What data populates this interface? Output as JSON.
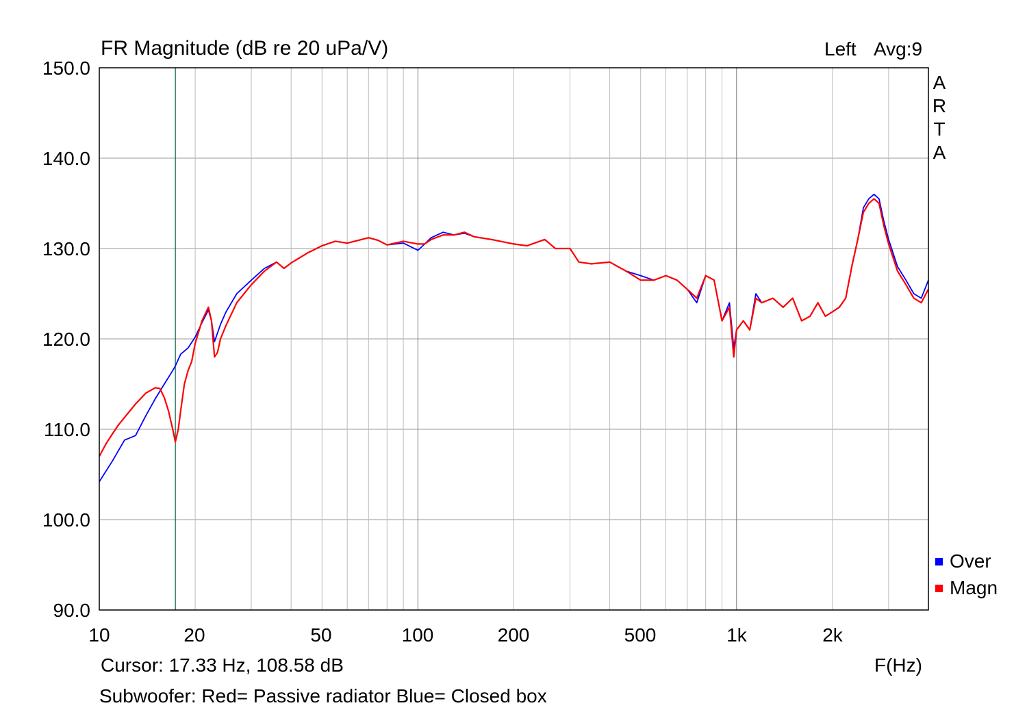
{
  "header": {
    "title": "FR Magnitude (dB re 20 uPa/V)",
    "channel": "Left",
    "avg": "Avg:9",
    "brand_letters": [
      "A",
      "R",
      "T",
      "A"
    ]
  },
  "footer": {
    "cursor": "Cursor: 17.33 Hz, 108.58 dB",
    "xunit": "F(Hz)",
    "note": "Subwoofer: Red= Passive radiator  Blue= Closed box"
  },
  "chart_data": {
    "type": "line",
    "title": "FR Magnitude (dB re 20 uPa/V)",
    "xlabel": "F(Hz)",
    "ylabel": "",
    "xscale": "log",
    "xlim": [
      10,
      4000
    ],
    "ylim": [
      90,
      150
    ],
    "grid": true,
    "legend_position": "right-bottom",
    "yticks": [
      "150.0",
      "140.0",
      "130.0",
      "120.0",
      "110.0",
      "100.0",
      "90.0"
    ],
    "ytick_values": [
      150,
      140,
      130,
      120,
      110,
      100,
      90
    ],
    "xticks": [
      "10",
      "20",
      "50",
      "100",
      "200",
      "500",
      "1k",
      "2k"
    ],
    "xtick_values": [
      10,
      20,
      50,
      100,
      200,
      500,
      1000,
      2000
    ],
    "cursor_hz": 17.33,
    "series": [
      {
        "name": "Over",
        "color": "#0000ff",
        "x": [
          10,
          11,
          12,
          13,
          14,
          15,
          16,
          17,
          17.33,
          18,
          19,
          20,
          21,
          22,
          22.5,
          23,
          24,
          25,
          27,
          30,
          33,
          36,
          38,
          40,
          45,
          50,
          55,
          60,
          65,
          70,
          75,
          80,
          90,
          100,
          105,
          110,
          120,
          130,
          140,
          150,
          170,
          200,
          220,
          250,
          270,
          300,
          320,
          350,
          400,
          450,
          500,
          550,
          600,
          650,
          700,
          750,
          800,
          850,
          900,
          950,
          980,
          1000,
          1050,
          1100,
          1150,
          1200,
          1300,
          1400,
          1500,
          1600,
          1700,
          1800,
          1900,
          2000,
          2100,
          2200,
          2300,
          2400,
          2500,
          2600,
          2700,
          2800,
          2900,
          3000,
          3200,
          3400,
          3600,
          3800,
          4000
        ],
        "y": [
          104.2,
          106.5,
          108.8,
          109.3,
          111.5,
          113.4,
          115,
          116.5,
          117,
          118.3,
          119,
          120.2,
          121.8,
          123.2,
          122,
          119.7,
          121.6,
          123,
          125,
          126.5,
          127.8,
          128.5,
          127.8,
          128.4,
          129.5,
          130.3,
          130.8,
          130.6,
          130.9,
          131.2,
          130.9,
          130.4,
          130.6,
          129.8,
          130.5,
          131.2,
          131.8,
          131.5,
          131.7,
          131.3,
          131,
          130.5,
          130.3,
          131,
          130,
          130,
          128.5,
          128.3,
          128.5,
          127.5,
          127,
          126.5,
          127,
          126.5,
          125.5,
          124,
          127,
          126.5,
          122,
          124,
          119,
          121,
          122,
          121,
          125,
          124,
          124.5,
          123.5,
          124.5,
          122,
          122.5,
          124,
          122.5,
          123,
          123.5,
          124.5,
          128,
          131,
          134.5,
          135.5,
          136,
          135.5,
          133,
          131,
          128,
          126.5,
          125,
          124.5,
          126.5
        ]
      },
      {
        "name": "Magn",
        "color": "#ff0000",
        "x": [
          10,
          10.5,
          11,
          11.5,
          12,
          13,
          14,
          15,
          15.5,
          16,
          16.5,
          17,
          17.33,
          17.7,
          18,
          18.5,
          19,
          19.5,
          20,
          21,
          22,
          22.5,
          23,
          23.5,
          24,
          25,
          27,
          30,
          33,
          36,
          38,
          40,
          45,
          50,
          55,
          60,
          65,
          70,
          75,
          80,
          90,
          100,
          105,
          110,
          120,
          130,
          140,
          150,
          170,
          200,
          220,
          250,
          270,
          300,
          320,
          350,
          400,
          450,
          500,
          550,
          600,
          650,
          700,
          750,
          800,
          850,
          900,
          950,
          980,
          1000,
          1050,
          1100,
          1150,
          1200,
          1300,
          1400,
          1500,
          1600,
          1700,
          1800,
          1900,
          2000,
          2100,
          2200,
          2300,
          2400,
          2500,
          2600,
          2700,
          2800,
          2900,
          3000,
          3200,
          3400,
          3600,
          3800,
          4000
        ],
        "y": [
          107,
          108.4,
          109.5,
          110.5,
          111.3,
          112.8,
          114,
          114.6,
          114.5,
          113.5,
          112,
          110,
          108.6,
          110,
          112,
          115,
          116.5,
          117.5,
          119.5,
          122,
          123.5,
          122,
          118,
          118.5,
          120,
          121.5,
          124,
          126,
          127.5,
          128.5,
          127.8,
          128.4,
          129.5,
          130.3,
          130.8,
          130.6,
          130.9,
          131.2,
          130.9,
          130.4,
          130.8,
          130.5,
          130.5,
          131,
          131.5,
          131.5,
          131.8,
          131.3,
          131,
          130.5,
          130.3,
          131,
          130,
          130,
          128.5,
          128.3,
          128.5,
          127.5,
          126.5,
          126.5,
          127,
          126.5,
          125.5,
          124.5,
          127,
          126.5,
          122,
          123.5,
          118,
          121,
          122,
          121,
          124.5,
          124,
          124.5,
          123.5,
          124.5,
          122,
          122.5,
          124,
          122.5,
          123,
          123.5,
          124.5,
          128,
          131,
          134,
          135,
          135.5,
          135,
          132.5,
          130.5,
          127.5,
          126,
          124.5,
          124,
          125.5
        ]
      }
    ]
  }
}
